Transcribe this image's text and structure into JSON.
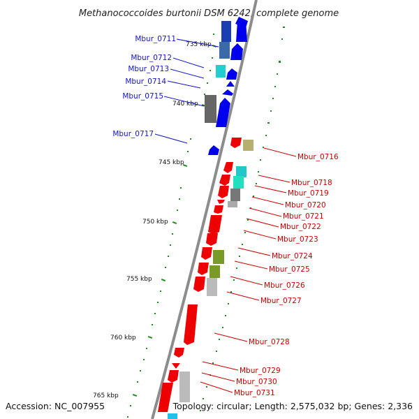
{
  "title": "Methanococcoides burtonii DSM 6242, complete genome",
  "footer": {
    "accession": "Accession: NC_007955",
    "topology": "Topology: circular; Length: 2,575,032 bp; Genes: 2,336"
  },
  "ticks": [
    "735 kbp",
    "740 kbp",
    "745 kbp",
    "750 kbp",
    "755 kbp",
    "760 kbp",
    "765 kbp"
  ],
  "genes_left": [
    "Mbur_0711",
    "Mbur_0712",
    "Mbur_0713",
    "Mbur_0714",
    "Mbur_0715",
    "Mbur_0717"
  ],
  "genes_right": [
    "Mbur_0716",
    "Mbur_0718",
    "Mbur_0719",
    "Mbur_0720",
    "Mbur_0721",
    "Mbur_0722",
    "Mbur_0723",
    "Mbur_0724",
    "Mbur_0725",
    "Mbur_0726",
    "Mbur_0727",
    "Mbur_0728",
    "Mbur_0729",
    "Mbur_0730",
    "Mbur_0731"
  ],
  "colors": {
    "forward_strand": "#0000ee",
    "reverse_strand": "#ee0000",
    "backbone": "#888888",
    "tick": "#228822",
    "label_blue": "#1414c8",
    "label_red": "#cc0000"
  }
}
